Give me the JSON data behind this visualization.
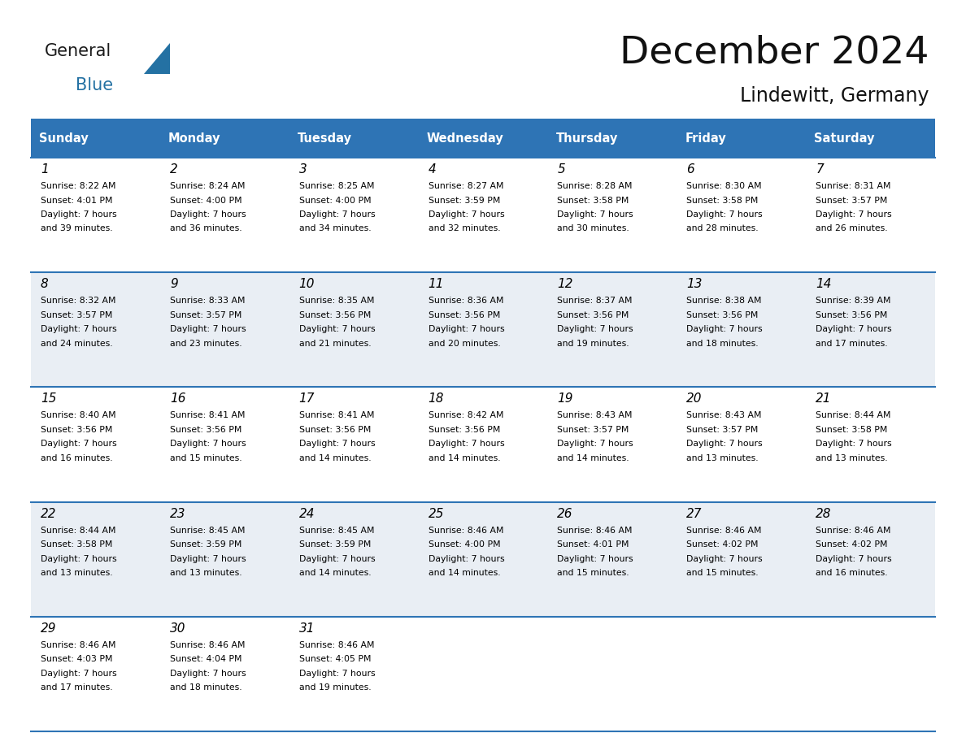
{
  "title": "December 2024",
  "subtitle": "Lindewitt, Germany",
  "header_color": "#2E74B5",
  "header_text_color": "#FFFFFF",
  "day_names": [
    "Sunday",
    "Monday",
    "Tuesday",
    "Wednesday",
    "Thursday",
    "Friday",
    "Saturday"
  ],
  "weeks": [
    [
      {
        "day": 1,
        "sunrise": "8:22 AM",
        "sunset": "4:01 PM",
        "daylight_hours": 7,
        "daylight_minutes": 39
      },
      {
        "day": 2,
        "sunrise": "8:24 AM",
        "sunset": "4:00 PM",
        "daylight_hours": 7,
        "daylight_minutes": 36
      },
      {
        "day": 3,
        "sunrise": "8:25 AM",
        "sunset": "4:00 PM",
        "daylight_hours": 7,
        "daylight_minutes": 34
      },
      {
        "day": 4,
        "sunrise": "8:27 AM",
        "sunset": "3:59 PM",
        "daylight_hours": 7,
        "daylight_minutes": 32
      },
      {
        "day": 5,
        "sunrise": "8:28 AM",
        "sunset": "3:58 PM",
        "daylight_hours": 7,
        "daylight_minutes": 30
      },
      {
        "day": 6,
        "sunrise": "8:30 AM",
        "sunset": "3:58 PM",
        "daylight_hours": 7,
        "daylight_minutes": 28
      },
      {
        "day": 7,
        "sunrise": "8:31 AM",
        "sunset": "3:57 PM",
        "daylight_hours": 7,
        "daylight_minutes": 26
      }
    ],
    [
      {
        "day": 8,
        "sunrise": "8:32 AM",
        "sunset": "3:57 PM",
        "daylight_hours": 7,
        "daylight_minutes": 24
      },
      {
        "day": 9,
        "sunrise": "8:33 AM",
        "sunset": "3:57 PM",
        "daylight_hours": 7,
        "daylight_minutes": 23
      },
      {
        "day": 10,
        "sunrise": "8:35 AM",
        "sunset": "3:56 PM",
        "daylight_hours": 7,
        "daylight_minutes": 21
      },
      {
        "day": 11,
        "sunrise": "8:36 AM",
        "sunset": "3:56 PM",
        "daylight_hours": 7,
        "daylight_minutes": 20
      },
      {
        "day": 12,
        "sunrise": "8:37 AM",
        "sunset": "3:56 PM",
        "daylight_hours": 7,
        "daylight_minutes": 19
      },
      {
        "day": 13,
        "sunrise": "8:38 AM",
        "sunset": "3:56 PM",
        "daylight_hours": 7,
        "daylight_minutes": 18
      },
      {
        "day": 14,
        "sunrise": "8:39 AM",
        "sunset": "3:56 PM",
        "daylight_hours": 7,
        "daylight_minutes": 17
      }
    ],
    [
      {
        "day": 15,
        "sunrise": "8:40 AM",
        "sunset": "3:56 PM",
        "daylight_hours": 7,
        "daylight_minutes": 16
      },
      {
        "day": 16,
        "sunrise": "8:41 AM",
        "sunset": "3:56 PM",
        "daylight_hours": 7,
        "daylight_minutes": 15
      },
      {
        "day": 17,
        "sunrise": "8:41 AM",
        "sunset": "3:56 PM",
        "daylight_hours": 7,
        "daylight_minutes": 14
      },
      {
        "day": 18,
        "sunrise": "8:42 AM",
        "sunset": "3:56 PM",
        "daylight_hours": 7,
        "daylight_minutes": 14
      },
      {
        "day": 19,
        "sunrise": "8:43 AM",
        "sunset": "3:57 PM",
        "daylight_hours": 7,
        "daylight_minutes": 14
      },
      {
        "day": 20,
        "sunrise": "8:43 AM",
        "sunset": "3:57 PM",
        "daylight_hours": 7,
        "daylight_minutes": 13
      },
      {
        "day": 21,
        "sunrise": "8:44 AM",
        "sunset": "3:58 PM",
        "daylight_hours": 7,
        "daylight_minutes": 13
      }
    ],
    [
      {
        "day": 22,
        "sunrise": "8:44 AM",
        "sunset": "3:58 PM",
        "daylight_hours": 7,
        "daylight_minutes": 13
      },
      {
        "day": 23,
        "sunrise": "8:45 AM",
        "sunset": "3:59 PM",
        "daylight_hours": 7,
        "daylight_minutes": 13
      },
      {
        "day": 24,
        "sunrise": "8:45 AM",
        "sunset": "3:59 PM",
        "daylight_hours": 7,
        "daylight_minutes": 14
      },
      {
        "day": 25,
        "sunrise": "8:46 AM",
        "sunset": "4:00 PM",
        "daylight_hours": 7,
        "daylight_minutes": 14
      },
      {
        "day": 26,
        "sunrise": "8:46 AM",
        "sunset": "4:01 PM",
        "daylight_hours": 7,
        "daylight_minutes": 15
      },
      {
        "day": 27,
        "sunrise": "8:46 AM",
        "sunset": "4:02 PM",
        "daylight_hours": 7,
        "daylight_minutes": 15
      },
      {
        "day": 28,
        "sunrise": "8:46 AM",
        "sunset": "4:02 PM",
        "daylight_hours": 7,
        "daylight_minutes": 16
      }
    ],
    [
      {
        "day": 29,
        "sunrise": "8:46 AM",
        "sunset": "4:03 PM",
        "daylight_hours": 7,
        "daylight_minutes": 17
      },
      {
        "day": 30,
        "sunrise": "8:46 AM",
        "sunset": "4:04 PM",
        "daylight_hours": 7,
        "daylight_minutes": 18
      },
      {
        "day": 31,
        "sunrise": "8:46 AM",
        "sunset": "4:05 PM",
        "daylight_hours": 7,
        "daylight_minutes": 19
      },
      null,
      null,
      null,
      null
    ]
  ],
  "bg_color": "#FFFFFF",
  "cell_bg_even": "#E9EEF4",
  "cell_bg_odd": "#FFFFFF",
  "border_color": "#2E74B5",
  "text_color": "#000000",
  "logo_general_color": "#1A1A1A",
  "logo_blue_color": "#2471A3"
}
